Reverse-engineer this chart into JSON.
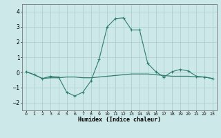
{
  "xlabel": "Humidex (Indice chaleur)",
  "x": [
    0,
    1,
    2,
    3,
    4,
    5,
    6,
    7,
    8,
    9,
    10,
    11,
    12,
    13,
    14,
    15,
    16,
    17,
    18,
    19,
    20,
    21,
    22,
    23
  ],
  "line1": [
    0.05,
    -0.15,
    -0.4,
    -0.25,
    -0.3,
    -1.3,
    -1.55,
    -1.3,
    -0.55,
    0.85,
    3.0,
    3.55,
    3.6,
    2.8,
    2.8,
    0.6,
    0.05,
    -0.3,
    0.05,
    0.2,
    0.1,
    -0.25,
    -0.3,
    -0.4
  ],
  "line2": [
    0.05,
    -0.15,
    -0.4,
    -0.35,
    -0.35,
    -0.3,
    -0.3,
    -0.35,
    -0.35,
    -0.3,
    -0.25,
    -0.2,
    -0.15,
    -0.1,
    -0.1,
    -0.1,
    -0.15,
    -0.2,
    -0.25,
    -0.25,
    -0.25,
    -0.3,
    -0.3,
    -0.4
  ],
  "line_color": "#2e7d6e",
  "bg_color": "#cce8e8",
  "grid_color": "#aacccc",
  "ylim": [
    -2.5,
    4.5
  ],
  "yticks": [
    -2,
    -1,
    0,
    1,
    2,
    3,
    4
  ],
  "xlim": [
    -0.5,
    23.5
  ]
}
